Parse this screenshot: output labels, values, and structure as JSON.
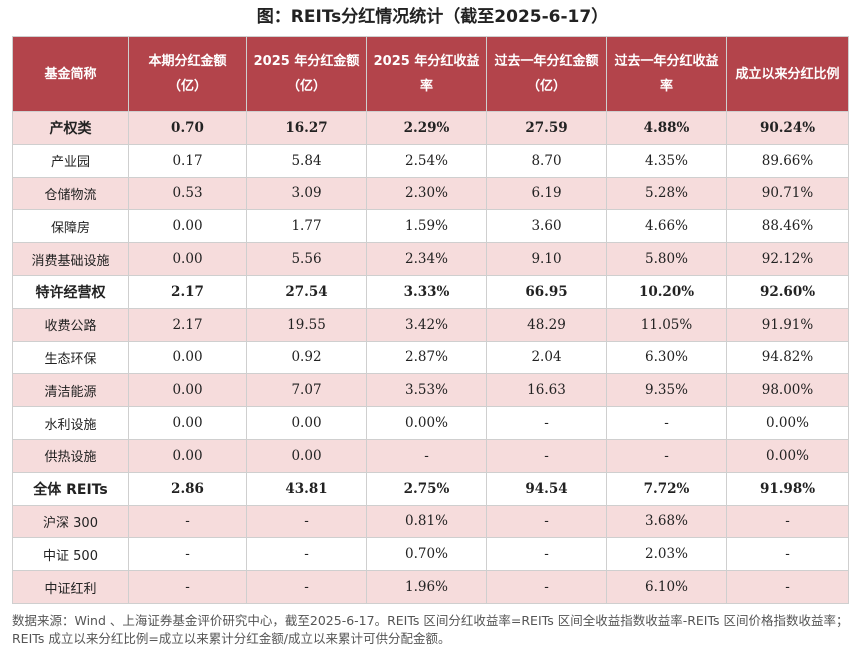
{
  "title": "图：REITs分红情况统计（截至2025-6-17）",
  "chart_data": {
    "type": "table",
    "columns": [
      "基金简称",
      "本期分红金额（亿）",
      "2025 年分红金额（亿）",
      "2025 年分红收益率",
      "过去一年分红金额（亿）",
      "过去一年分红收益率",
      "成立以来分红比例"
    ],
    "rows": [
      {
        "name": "产权类",
        "bold": true,
        "values": [
          "0.70",
          "16.27",
          "2.29%",
          "27.59",
          "4.88%",
          "90.24%"
        ]
      },
      {
        "name": "产业园",
        "bold": false,
        "values": [
          "0.17",
          "5.84",
          "2.54%",
          "8.70",
          "4.35%",
          "89.66%"
        ]
      },
      {
        "name": "仓储物流",
        "bold": false,
        "values": [
          "0.53",
          "3.09",
          "2.30%",
          "6.19",
          "5.28%",
          "90.71%"
        ]
      },
      {
        "name": "保障房",
        "bold": false,
        "values": [
          "0.00",
          "1.77",
          "1.59%",
          "3.60",
          "4.66%",
          "88.46%"
        ]
      },
      {
        "name": "消费基础设施",
        "bold": false,
        "values": [
          "0.00",
          "5.56",
          "2.34%",
          "9.10",
          "5.80%",
          "92.12%"
        ]
      },
      {
        "name": "特许经营权",
        "bold": true,
        "values": [
          "2.17",
          "27.54",
          "3.33%",
          "66.95",
          "10.20%",
          "92.60%"
        ]
      },
      {
        "name": "收费公路",
        "bold": false,
        "values": [
          "2.17",
          "19.55",
          "3.42%",
          "48.29",
          "11.05%",
          "91.91%"
        ]
      },
      {
        "name": "生态环保",
        "bold": false,
        "values": [
          "0.00",
          "0.92",
          "2.87%",
          "2.04",
          "6.30%",
          "94.82%"
        ]
      },
      {
        "name": "清洁能源",
        "bold": false,
        "values": [
          "0.00",
          "7.07",
          "3.53%",
          "16.63",
          "9.35%",
          "98.00%"
        ]
      },
      {
        "name": "水利设施",
        "bold": false,
        "values": [
          "0.00",
          "0.00",
          "0.00%",
          "-",
          "-",
          "0.00%"
        ]
      },
      {
        "name": "供热设施",
        "bold": false,
        "values": [
          "0.00",
          "0.00",
          "-",
          "-",
          "-",
          "0.00%"
        ]
      },
      {
        "name": "全体 REITs",
        "bold": true,
        "values": [
          "2.86",
          "43.81",
          "2.75%",
          "94.54",
          "7.72%",
          "91.98%"
        ]
      },
      {
        "name": "沪深 300",
        "bold": false,
        "values": [
          "-",
          "-",
          "0.81%",
          "-",
          "3.68%",
          "-"
        ]
      },
      {
        "name": "中证 500",
        "bold": false,
        "values": [
          "-",
          "-",
          "0.70%",
          "-",
          "2.03%",
          "-"
        ]
      },
      {
        "name": "中证红利",
        "bold": false,
        "values": [
          "-",
          "-",
          "1.96%",
          "-",
          "6.10%",
          "-"
        ]
      }
    ]
  },
  "colors": {
    "header_bg": "#b3444b",
    "header_text": "#ffffff",
    "stripe_pink": "#f6dcdc"
  },
  "footnote": "数据来源：Wind 、上海证券基金评价研究中心，截至2025-6-17。REITs 区间分红收益率=REITs 区间全收益指数收益率-REITs 区间价格指数收益率；REITs 成立以来分红比例=成立以来累计分红金额/成立以来累计可供分配金额。"
}
